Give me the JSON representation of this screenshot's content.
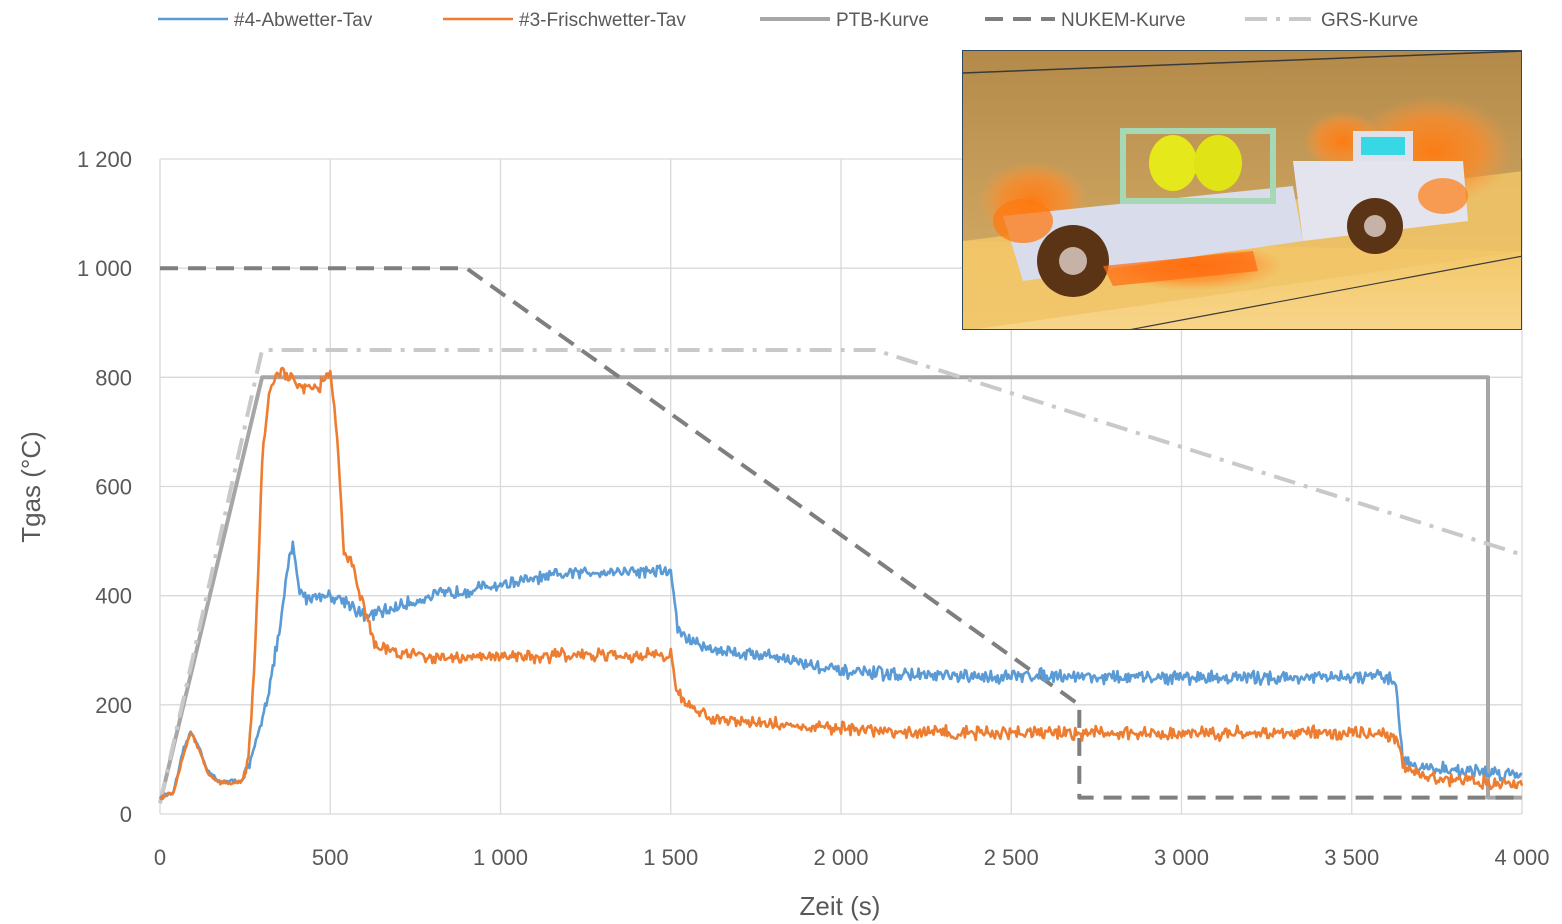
{
  "chart_data": {
    "type": "line",
    "xlabel": "Zeit (s)",
    "ylabel": "Tgas (°C)",
    "xlim": [
      0,
      4000
    ],
    "ylim": [
      0,
      1200
    ],
    "x_ticks": [
      0,
      500,
      1000,
      1500,
      2000,
      2500,
      3000,
      3500,
      4000
    ],
    "y_ticks": [
      0,
      200,
      400,
      600,
      800,
      1000,
      1200
    ],
    "x_tick_labels": [
      "0",
      "500",
      "1 000",
      "1 500",
      "2 000",
      "2 500",
      "3 000",
      "3 500",
      "4 000"
    ],
    "y_tick_labels": [
      "0",
      "200",
      "400",
      "600",
      "800",
      "1 000",
      "1 200"
    ],
    "grid": true,
    "legend_position": "top",
    "series": [
      {
        "name": "#4-Abwetter-Tav",
        "color": "#5b9bd5",
        "style": "solid",
        "x": [
          0,
          40,
          70,
          90,
          110,
          140,
          170,
          200,
          240,
          270,
          290,
          320,
          350,
          380,
          390,
          410,
          430,
          460,
          500,
          550,
          600,
          650,
          700,
          800,
          900,
          1000,
          1100,
          1200,
          1300,
          1400,
          1500,
          1520,
          1550,
          1600,
          1700,
          1800,
          1900,
          2000,
          2200,
          2400,
          2600,
          2800,
          3000,
          3200,
          3400,
          3600,
          3630,
          3650,
          3700,
          3800,
          4000
        ],
        "y": [
          30,
          40,
          120,
          150,
          130,
          80,
          60,
          60,
          60,
          100,
          150,
          230,
          330,
          470,
          490,
          410,
          395,
          400,
          400,
          390,
          360,
          370,
          380,
          400,
          410,
          420,
          430,
          440,
          445,
          445,
          445,
          340,
          320,
          305,
          295,
          290,
          275,
          260,
          255,
          250,
          255,
          250,
          250,
          250,
          250,
          250,
          240,
          100,
          85,
          80,
          72
        ]
      },
      {
        "name": "#3-Frischwetter-Tav",
        "color": "#ed7d31",
        "style": "solid",
        "x": [
          0,
          40,
          70,
          90,
          110,
          140,
          170,
          200,
          240,
          260,
          280,
          300,
          320,
          340,
          360,
          380,
          400,
          430,
          470,
          500,
          520,
          540,
          560,
          580,
          600,
          630,
          660,
          700,
          800,
          900,
          1000,
          1100,
          1200,
          1300,
          1400,
          1500,
          1520,
          1550,
          1600,
          1700,
          1800,
          2000,
          2200,
          2400,
          2600,
          2800,
          3000,
          3200,
          3400,
          3600,
          3630,
          3650,
          3700,
          3800,
          4000
        ],
        "y": [
          30,
          40,
          110,
          150,
          125,
          75,
          58,
          58,
          60,
          100,
          300,
          650,
          770,
          800,
          810,
          800,
          790,
          780,
          785,
          810,
          700,
          480,
          470,
          420,
          380,
          310,
          300,
          295,
          290,
          285,
          290,
          290,
          290,
          290,
          290,
          290,
          220,
          200,
          180,
          170,
          165,
          155,
          150,
          148,
          148,
          148,
          148,
          148,
          148,
          148,
          140,
          90,
          70,
          62,
          52
        ]
      },
      {
        "name": "PTB-Kurve",
        "color": "#a6a6a6",
        "style": "solid-thick",
        "x": [
          0,
          300,
          3900,
          3900,
          4000
        ],
        "y": [
          20,
          800,
          800,
          30,
          30
        ]
      },
      {
        "name": "NUKEM-Kurve",
        "color": "#7f7f7f",
        "style": "dash",
        "x": [
          0,
          900,
          2700,
          2700,
          4000
        ],
        "y": [
          1000,
          1000,
          200,
          30,
          30
        ]
      },
      {
        "name": "GRS-Kurve",
        "color": "#c9c9c9",
        "style": "dashdot",
        "x": [
          0,
          300,
          2100,
          4000
        ],
        "y": [
          20,
          850,
          850,
          475
        ]
      }
    ]
  }
}
